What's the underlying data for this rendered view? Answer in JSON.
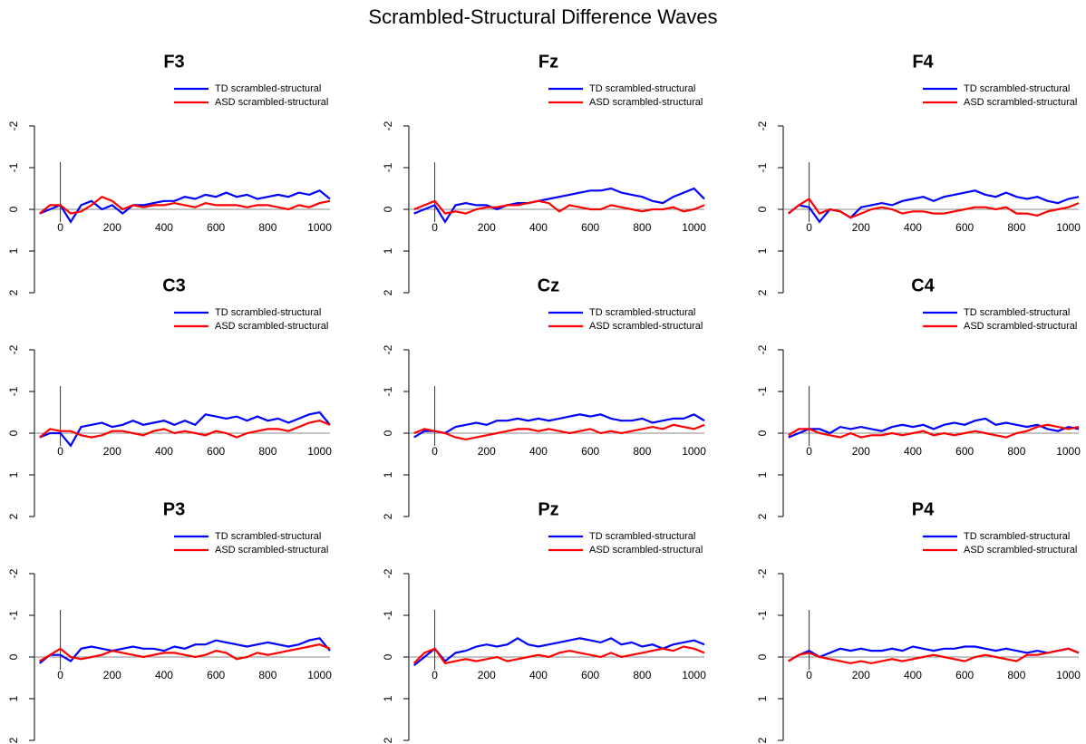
{
  "title": "Scrambled-Structural Difference Waves",
  "chart_data": [
    {
      "type": "line",
      "title": "F3",
      "x": [
        -80,
        -40,
        0,
        40,
        80,
        120,
        160,
        200,
        240,
        280,
        320,
        360,
        400,
        440,
        480,
        520,
        560,
        600,
        640,
        680,
        720,
        760,
        800,
        840,
        880,
        920,
        960,
        1000,
        1040
      ],
      "xlim": [
        -100,
        1040
      ],
      "xticks": [
        0,
        200,
        400,
        600,
        800,
        1000
      ],
      "ylim": [
        2,
        -2
      ],
      "yticks": [
        -2,
        -1,
        0,
        1,
        2
      ],
      "series": [
        {
          "name": "TD scrambled-structural",
          "color": "#0000ff",
          "values": [
            0.1,
            0,
            -0.1,
            0.3,
            -0.1,
            -0.2,
            0,
            -0.1,
            0.1,
            -0.1,
            -0.1,
            -0.15,
            -0.2,
            -0.2,
            -0.3,
            -0.25,
            -0.35,
            -0.3,
            -0.4,
            -0.3,
            -0.35,
            -0.25,
            -0.3,
            -0.35,
            -0.3,
            -0.4,
            -0.35,
            -0.45,
            -0.25
          ]
        },
        {
          "name": "ASD scrambled-structural",
          "color": "#ff0000",
          "values": [
            0.1,
            -0.1,
            -0.1,
            0.1,
            0.05,
            -0.1,
            -0.3,
            -0.2,
            0,
            -0.1,
            -0.05,
            -0.1,
            -0.1,
            -0.15,
            -0.1,
            -0.05,
            -0.15,
            -0.1,
            -0.1,
            -0.1,
            -0.05,
            -0.1,
            -0.1,
            -0.05,
            0,
            -0.1,
            -0.05,
            -0.15,
            -0.2
          ]
        }
      ]
    },
    {
      "type": "line",
      "title": "Fz",
      "x": [
        -80,
        -40,
        0,
        40,
        80,
        120,
        160,
        200,
        240,
        280,
        320,
        360,
        400,
        440,
        480,
        520,
        560,
        600,
        640,
        680,
        720,
        760,
        800,
        840,
        880,
        920,
        960,
        1000,
        1040
      ],
      "xlim": [
        -100,
        1040
      ],
      "xticks": [
        0,
        200,
        400,
        600,
        800,
        1000
      ],
      "ylim": [
        2,
        -2
      ],
      "yticks": [
        -2,
        -1,
        0,
        1,
        2
      ],
      "series": [
        {
          "name": "TD scrambled-structural",
          "color": "#0000ff",
          "values": [
            0.1,
            0,
            -0.1,
            0.3,
            -0.1,
            -0.15,
            -0.1,
            -0.1,
            0,
            -0.1,
            -0.15,
            -0.15,
            -0.2,
            -0.25,
            -0.3,
            -0.35,
            -0.4,
            -0.45,
            -0.45,
            -0.5,
            -0.4,
            -0.35,
            -0.3,
            -0.2,
            -0.15,
            -0.3,
            -0.4,
            -0.5,
            -0.25
          ]
        },
        {
          "name": "ASD scrambled-structural",
          "color": "#ff0000",
          "values": [
            0,
            -0.1,
            -0.2,
            0.1,
            0.05,
            0.1,
            0,
            -0.05,
            -0.05,
            -0.1,
            -0.1,
            -0.15,
            -0.2,
            -0.15,
            0.05,
            -0.1,
            -0.05,
            0,
            0,
            -0.1,
            -0.05,
            0,
            0.05,
            0,
            0,
            -0.05,
            0.05,
            0,
            -0.1
          ]
        }
      ]
    },
    {
      "type": "line",
      "title": "F4",
      "x": [
        -80,
        -40,
        0,
        40,
        80,
        120,
        160,
        200,
        240,
        280,
        320,
        360,
        400,
        440,
        480,
        520,
        560,
        600,
        640,
        680,
        720,
        760,
        800,
        840,
        880,
        920,
        960,
        1000,
        1040
      ],
      "xlim": [
        -100,
        1040
      ],
      "xticks": [
        0,
        200,
        400,
        600,
        800,
        1000
      ],
      "ylim": [
        2,
        -2
      ],
      "yticks": [
        -2,
        -1,
        0,
        1,
        2
      ],
      "series": [
        {
          "name": "TD scrambled-structural",
          "color": "#0000ff",
          "values": [
            0.1,
            -0.1,
            -0.05,
            0.3,
            0,
            0.05,
            0.2,
            -0.05,
            -0.1,
            -0.15,
            -0.1,
            -0.2,
            -0.25,
            -0.3,
            -0.2,
            -0.3,
            -0.35,
            -0.4,
            -0.45,
            -0.35,
            -0.3,
            -0.4,
            -0.3,
            -0.25,
            -0.3,
            -0.2,
            -0.15,
            -0.25,
            -0.3
          ]
        },
        {
          "name": "ASD scrambled-structural",
          "color": "#ff0000",
          "values": [
            0.1,
            -0.1,
            -0.25,
            0.1,
            0,
            0.05,
            0.2,
            0.1,
            0,
            -0.05,
            0,
            0.1,
            0.05,
            0.05,
            0.1,
            0.1,
            0.05,
            0,
            -0.05,
            -0.05,
            0,
            -0.05,
            0.1,
            0.1,
            0.15,
            0.05,
            0,
            -0.05,
            -0.15
          ]
        }
      ]
    },
    {
      "type": "line",
      "title": "C3",
      "x": [
        -80,
        -40,
        0,
        40,
        80,
        120,
        160,
        200,
        240,
        280,
        320,
        360,
        400,
        440,
        480,
        520,
        560,
        600,
        640,
        680,
        720,
        760,
        800,
        840,
        880,
        920,
        960,
        1000,
        1040
      ],
      "xlim": [
        -100,
        1040
      ],
      "xticks": [
        0,
        200,
        400,
        600,
        800,
        1000
      ],
      "ylim": [
        2,
        -2
      ],
      "yticks": [
        -2,
        -1,
        0,
        1,
        2
      ],
      "series": [
        {
          "name": "TD scrambled-structural",
          "color": "#0000ff",
          "values": [
            0.1,
            0,
            0,
            0.3,
            -0.15,
            -0.2,
            -0.25,
            -0.15,
            -0.2,
            -0.3,
            -0.2,
            -0.25,
            -0.3,
            -0.2,
            -0.3,
            -0.2,
            -0.45,
            -0.4,
            -0.35,
            -0.4,
            -0.3,
            -0.4,
            -0.3,
            -0.35,
            -0.25,
            -0.35,
            -0.45,
            -0.5,
            -0.2
          ]
        },
        {
          "name": "ASD scrambled-structural",
          "color": "#ff0000",
          "values": [
            0.1,
            -0.1,
            -0.05,
            -0.05,
            0.05,
            0.1,
            0.05,
            -0.05,
            -0.05,
            0,
            0.05,
            -0.05,
            -0.1,
            0,
            -0.05,
            0,
            0.05,
            -0.05,
            0,
            0.1,
            0,
            -0.05,
            -0.1,
            -0.1,
            -0.05,
            -0.15,
            -0.25,
            -0.3,
            -0.2
          ]
        }
      ]
    },
    {
      "type": "line",
      "title": "Cz",
      "x": [
        -80,
        -40,
        0,
        40,
        80,
        120,
        160,
        200,
        240,
        280,
        320,
        360,
        400,
        440,
        480,
        520,
        560,
        600,
        640,
        680,
        720,
        760,
        800,
        840,
        880,
        920,
        960,
        1000,
        1040
      ],
      "xlim": [
        -100,
        1040
      ],
      "xticks": [
        0,
        200,
        400,
        600,
        800,
        1000
      ],
      "ylim": [
        2,
        -2
      ],
      "yticks": [
        -2,
        -1,
        0,
        1,
        2
      ],
      "series": [
        {
          "name": "TD scrambled-structural",
          "color": "#0000ff",
          "values": [
            0.1,
            -0.05,
            -0.05,
            0,
            -0.15,
            -0.2,
            -0.25,
            -0.2,
            -0.3,
            -0.3,
            -0.35,
            -0.3,
            -0.35,
            -0.3,
            -0.35,
            -0.4,
            -0.45,
            -0.4,
            -0.45,
            -0.35,
            -0.3,
            -0.3,
            -0.35,
            -0.25,
            -0.3,
            -0.35,
            -0.35,
            -0.45,
            -0.3
          ]
        },
        {
          "name": "ASD scrambled-structural",
          "color": "#ff0000",
          "values": [
            0,
            -0.1,
            -0.05,
            0,
            0.1,
            0.15,
            0.1,
            0.05,
            0,
            -0.05,
            -0.1,
            -0.1,
            -0.05,
            -0.1,
            -0.05,
            0,
            -0.05,
            -0.1,
            0,
            -0.05,
            0,
            -0.05,
            -0.1,
            -0.15,
            -0.1,
            -0.2,
            -0.15,
            -0.1,
            -0.2
          ]
        }
      ]
    },
    {
      "type": "line",
      "title": "C4",
      "x": [
        -80,
        -40,
        0,
        40,
        80,
        120,
        160,
        200,
        240,
        280,
        320,
        360,
        400,
        440,
        480,
        520,
        560,
        600,
        640,
        680,
        720,
        760,
        800,
        840,
        880,
        920,
        960,
        1000,
        1040
      ],
      "xlim": [
        -100,
        1040
      ],
      "xticks": [
        0,
        200,
        400,
        600,
        800,
        1000
      ],
      "ylim": [
        2,
        -2
      ],
      "yticks": [
        -2,
        -1,
        0,
        1,
        2
      ],
      "series": [
        {
          "name": "TD scrambled-structural",
          "color": "#0000ff",
          "values": [
            0.1,
            0,
            -0.1,
            -0.1,
            0,
            -0.15,
            -0.1,
            -0.15,
            -0.1,
            -0.05,
            -0.15,
            -0.2,
            -0.15,
            -0.2,
            -0.1,
            -0.2,
            -0.25,
            -0.2,
            -0.3,
            -0.35,
            -0.2,
            -0.25,
            -0.2,
            -0.15,
            -0.2,
            -0.1,
            -0.05,
            -0.15,
            -0.1
          ]
        },
        {
          "name": "ASD scrambled-structural",
          "color": "#ff0000",
          "values": [
            0.05,
            -0.1,
            -0.1,
            0,
            0.05,
            0.1,
            0,
            0.1,
            0.05,
            0.05,
            0,
            0.05,
            0,
            -0.05,
            0.05,
            0,
            0.05,
            0,
            -0.05,
            0,
            0.05,
            0.1,
            0,
            -0.05,
            -0.15,
            -0.2,
            -0.15,
            -0.1,
            -0.15
          ]
        }
      ]
    },
    {
      "type": "line",
      "title": "P3",
      "x": [
        -80,
        -40,
        0,
        40,
        80,
        120,
        160,
        200,
        240,
        280,
        320,
        360,
        400,
        440,
        480,
        520,
        560,
        600,
        640,
        680,
        720,
        760,
        800,
        840,
        880,
        920,
        960,
        1000,
        1040
      ],
      "xlim": [
        -100,
        1040
      ],
      "xticks": [
        0,
        200,
        400,
        600,
        800,
        1000
      ],
      "ylim": [
        2,
        -2
      ],
      "yticks": [
        -2,
        -1,
        0,
        1,
        2
      ],
      "series": [
        {
          "name": "TD scrambled-structural",
          "color": "#0000ff",
          "values": [
            0.15,
            -0.05,
            -0.05,
            0.1,
            -0.2,
            -0.25,
            -0.2,
            -0.15,
            -0.2,
            -0.25,
            -0.2,
            -0.2,
            -0.15,
            -0.25,
            -0.2,
            -0.3,
            -0.3,
            -0.4,
            -0.35,
            -0.3,
            -0.25,
            -0.3,
            -0.35,
            -0.3,
            -0.25,
            -0.3,
            -0.4,
            -0.45,
            -0.15
          ]
        },
        {
          "name": "ASD scrambled-structural",
          "color": "#ff0000",
          "values": [
            0.1,
            -0.05,
            -0.2,
            0,
            0.05,
            0,
            -0.05,
            -0.15,
            -0.1,
            -0.05,
            0,
            -0.05,
            -0.1,
            -0.1,
            -0.05,
            0,
            -0.05,
            -0.15,
            -0.1,
            0.05,
            0,
            -0.1,
            -0.05,
            -0.1,
            -0.15,
            -0.2,
            -0.25,
            -0.3,
            -0.2
          ]
        }
      ]
    },
    {
      "type": "line",
      "title": "Pz",
      "x": [
        -80,
        -40,
        0,
        40,
        80,
        120,
        160,
        200,
        240,
        280,
        320,
        360,
        400,
        440,
        480,
        520,
        560,
        600,
        640,
        680,
        720,
        760,
        800,
        840,
        880,
        920,
        960,
        1000,
        1040
      ],
      "xlim": [
        -100,
        1040
      ],
      "xticks": [
        0,
        200,
        400,
        600,
        800,
        1000
      ],
      "ylim": [
        2,
        -2
      ],
      "yticks": [
        -2,
        -1,
        0,
        1,
        2
      ],
      "series": [
        {
          "name": "TD scrambled-structural",
          "color": "#0000ff",
          "values": [
            0.2,
            0,
            -0.2,
            0.1,
            -0.1,
            -0.15,
            -0.25,
            -0.3,
            -0.25,
            -0.3,
            -0.45,
            -0.3,
            -0.25,
            -0.3,
            -0.35,
            -0.4,
            -0.45,
            -0.4,
            -0.35,
            -0.45,
            -0.3,
            -0.35,
            -0.25,
            -0.3,
            -0.2,
            -0.3,
            -0.35,
            -0.4,
            -0.3
          ]
        },
        {
          "name": "ASD scrambled-structural",
          "color": "#ff0000",
          "values": [
            0.15,
            -0.1,
            -0.2,
            0.15,
            0.1,
            0.05,
            0.1,
            0.05,
            0,
            0.1,
            0.05,
            0,
            -0.05,
            0,
            -0.1,
            -0.15,
            -0.1,
            -0.05,
            0,
            -0.1,
            0,
            -0.05,
            -0.1,
            -0.15,
            -0.2,
            -0.15,
            -0.25,
            -0.2,
            -0.1
          ]
        }
      ]
    },
    {
      "type": "line",
      "title": "P4",
      "x": [
        -80,
        -40,
        0,
        40,
        80,
        120,
        160,
        200,
        240,
        280,
        320,
        360,
        400,
        440,
        480,
        520,
        560,
        600,
        640,
        680,
        720,
        760,
        800,
        840,
        880,
        920,
        960,
        1000,
        1040
      ],
      "xlim": [
        -100,
        1040
      ],
      "xticks": [
        0,
        200,
        400,
        600,
        800,
        1000
      ],
      "ylim": [
        2,
        -2
      ],
      "yticks": [
        -2,
        -1,
        0,
        1,
        2
      ],
      "series": [
        {
          "name": "TD scrambled-structural",
          "color": "#0000ff",
          "values": [
            0.1,
            -0.05,
            -0.15,
            0,
            -0.1,
            -0.2,
            -0.15,
            -0.2,
            -0.15,
            -0.15,
            -0.2,
            -0.15,
            -0.25,
            -0.2,
            -0.15,
            -0.2,
            -0.2,
            -0.25,
            -0.25,
            -0.2,
            -0.15,
            -0.2,
            -0.15,
            -0.1,
            -0.15,
            -0.1,
            -0.15,
            -0.2,
            -0.1
          ]
        },
        {
          "name": "ASD scrambled-structural",
          "color": "#ff0000",
          "values": [
            0.1,
            -0.05,
            -0.1,
            0,
            0.05,
            0.1,
            0.15,
            0.1,
            0.15,
            0.1,
            0.05,
            0.1,
            0.05,
            0,
            -0.05,
            0,
            0.05,
            0.1,
            0,
            -0.05,
            0,
            0.05,
            0.1,
            -0.05,
            -0.05,
            -0.1,
            -0.15,
            -0.2,
            -0.1
          ]
        }
      ]
    }
  ]
}
